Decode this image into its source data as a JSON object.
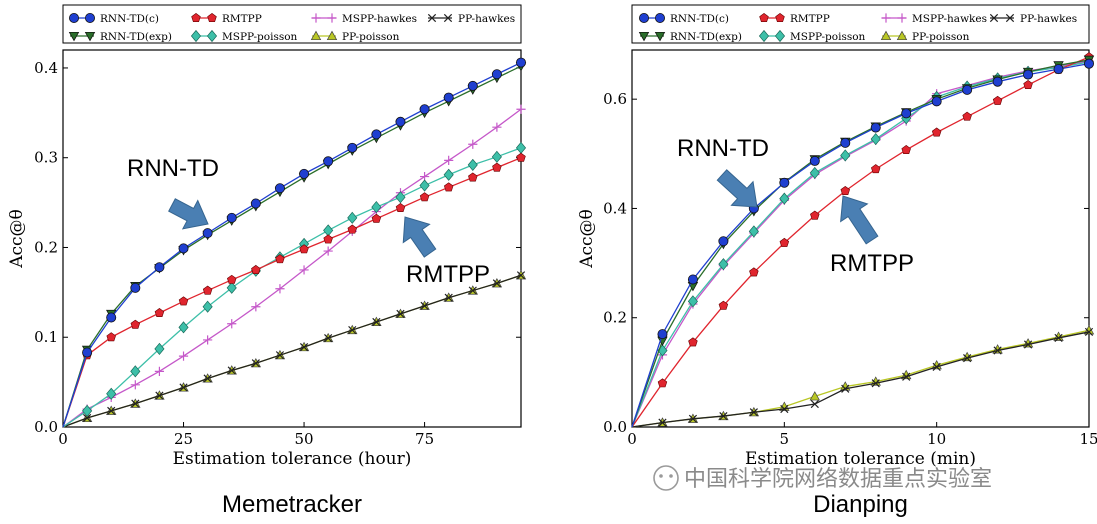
{
  "legend_entries": [
    "RNN-TD(c)",
    "RMTPP",
    "MSPP-hawkes",
    "PP-hawkes",
    "RNN-TD(exp)",
    "MSPP-poisson",
    "PP-poisson"
  ],
  "watermark": "中国科学院网络数据重点实验室",
  "chart_data": [
    {
      "type": "line",
      "title": "Memetracker",
      "xlabel": "Estimation tolerance (hour)",
      "ylabel": "Acc@θ",
      "xlim": [
        0,
        95
      ],
      "ylim": [
        0,
        0.42
      ],
      "xticks": [
        "0",
        "25",
        "50",
        "75"
      ],
      "yticks": [
        "0.0",
        "0.1",
        "0.2",
        "0.3",
        "0.4"
      ],
      "grid": false,
      "legend_position": "top",
      "x": [
        0,
        5,
        10,
        15,
        20,
        25,
        30,
        35,
        40,
        45,
        50,
        55,
        60,
        65,
        70,
        75,
        80,
        85,
        90,
        95
      ],
      "series": [
        {
          "name": "RNN-TD(c)",
          "color": "#1f3fd0",
          "marker": "circle",
          "values": [
            0,
            0.083,
            0.122,
            0.155,
            0.178,
            0.199,
            0.216,
            0.233,
            0.249,
            0.266,
            0.282,
            0.296,
            0.311,
            0.326,
            0.34,
            0.354,
            0.367,
            0.38,
            0.393,
            0.406
          ]
        },
        {
          "name": "RNN-TD(exp)",
          "color": "#2a6e2a",
          "marker": "triangle-down",
          "values": [
            0,
            0.086,
            0.126,
            0.157,
            0.177,
            0.197,
            0.214,
            0.23,
            0.246,
            0.262,
            0.278,
            0.293,
            0.308,
            0.322,
            0.336,
            0.35,
            0.363,
            0.376,
            0.389,
            0.402
          ]
        },
        {
          "name": "RMTPP",
          "color": "#e0252e",
          "marker": "pentagon",
          "values": [
            0,
            0.08,
            0.1,
            0.114,
            0.127,
            0.14,
            0.152,
            0.164,
            0.175,
            0.187,
            0.198,
            0.209,
            0.22,
            0.232,
            0.244,
            0.256,
            0.267,
            0.278,
            0.289,
            0.3
          ]
        },
        {
          "name": "MSPP-poisson",
          "color": "#3dbfa8",
          "marker": "diamond",
          "values": [
            0,
            0.018,
            0.037,
            0.062,
            0.087,
            0.111,
            0.134,
            0.155,
            0.174,
            0.189,
            0.204,
            0.219,
            0.233,
            0.245,
            0.256,
            0.269,
            0.281,
            0.292,
            0.301,
            0.311
          ]
        },
        {
          "name": "MSPP-hawkes",
          "color": "#c558c9",
          "marker": "plus",
          "values": [
            0,
            0.02,
            0.033,
            0.047,
            0.062,
            0.079,
            0.097,
            0.115,
            0.134,
            0.154,
            0.175,
            0.196,
            0.218,
            0.24,
            0.261,
            0.279,
            0.297,
            0.315,
            0.334,
            0.354
          ]
        },
        {
          "name": "PP-hawkes",
          "color": "#222222",
          "marker": "x",
          "values": [
            0,
            0.01,
            0.018,
            0.026,
            0.035,
            0.044,
            0.054,
            0.063,
            0.071,
            0.08,
            0.089,
            0.099,
            0.108,
            0.117,
            0.126,
            0.135,
            0.144,
            0.152,
            0.16,
            0.169
          ]
        },
        {
          "name": "PP-poisson",
          "color": "#b9c724",
          "marker": "triangle-up",
          "values": [
            0,
            0.01,
            0.018,
            0.026,
            0.035,
            0.044,
            0.054,
            0.063,
            0.071,
            0.08,
            0.089,
            0.099,
            0.108,
            0.117,
            0.126,
            0.135,
            0.144,
            0.152,
            0.16,
            0.169
          ]
        }
      ],
      "annotations": [
        {
          "text": "RNN-TD",
          "target_series": "RNN-TD(c)",
          "x": 30,
          "y": 0.216
        },
        {
          "text": "RMTPP",
          "target_series": "RMTPP",
          "x": 70,
          "y": 0.244
        }
      ]
    },
    {
      "type": "line",
      "title": "Dianping",
      "xlabel": "Estimation tolerance (min)",
      "ylabel": "Acc@θ",
      "xlim": [
        0,
        15
      ],
      "ylim": [
        0,
        0.69
      ],
      "xticks": [
        "0",
        "5",
        "10",
        "15"
      ],
      "yticks": [
        "0.0",
        "0.2",
        "0.4",
        "0.6"
      ],
      "grid": false,
      "legend_position": "top",
      "x": [
        0,
        1,
        2,
        3,
        4,
        5,
        6,
        7,
        8,
        9,
        10,
        11,
        12,
        13,
        14,
        15
      ],
      "series": [
        {
          "name": "RNN-TD(c)",
          "color": "#1f3fd0",
          "marker": "circle",
          "values": [
            0,
            0.17,
            0.27,
            0.34,
            0.4,
            0.447,
            0.487,
            0.52,
            0.548,
            0.574,
            0.596,
            0.617,
            0.632,
            0.645,
            0.655,
            0.665
          ]
        },
        {
          "name": "RNN-TD(exp)",
          "color": "#2a6e2a",
          "marker": "triangle-down",
          "values": [
            0,
            0.158,
            0.258,
            0.335,
            0.395,
            0.448,
            0.49,
            0.522,
            0.55,
            0.576,
            0.6,
            0.62,
            0.636,
            0.65,
            0.662,
            0.672
          ]
        },
        {
          "name": "RMTPP",
          "color": "#e0252e",
          "marker": "pentagon",
          "values": [
            0,
            0.08,
            0.155,
            0.222,
            0.283,
            0.337,
            0.387,
            0.432,
            0.472,
            0.507,
            0.539,
            0.568,
            0.597,
            0.626,
            0.654,
            0.677
          ]
        },
        {
          "name": "MSPP-poisson",
          "color": "#3dbfa8",
          "marker": "diamond",
          "values": [
            0,
            0.14,
            0.23,
            0.298,
            0.358,
            0.418,
            0.465,
            0.497,
            0.527,
            0.565,
            0.604,
            0.623,
            0.638,
            0.65,
            0.658,
            0.668
          ]
        },
        {
          "name": "MSPP-hawkes",
          "color": "#c558c9",
          "marker": "plus",
          "values": [
            0,
            0.132,
            0.225,
            0.295,
            0.355,
            0.415,
            0.462,
            0.495,
            0.525,
            0.56,
            0.61,
            0.625,
            0.64,
            0.652,
            0.66,
            0.67
          ]
        },
        {
          "name": "PP-hawkes",
          "color": "#222222",
          "marker": "x",
          "values": [
            0,
            0.008,
            0.015,
            0.02,
            0.027,
            0.033,
            0.042,
            0.07,
            0.08,
            0.092,
            0.11,
            0.126,
            0.14,
            0.151,
            0.163,
            0.174
          ]
        },
        {
          "name": "PP-poisson",
          "color": "#b9c724",
          "marker": "triangle-up",
          "values": [
            0,
            0.008,
            0.015,
            0.02,
            0.027,
            0.037,
            0.056,
            0.074,
            0.083,
            0.095,
            0.113,
            0.128,
            0.142,
            0.153,
            0.165,
            0.177
          ]
        }
      ],
      "annotations": [
        {
          "text": "RNN-TD",
          "target_series": "RNN-TD(c)",
          "x": 4,
          "y": 0.4
        },
        {
          "text": "RMTPP",
          "target_series": "RMTPP",
          "x": 7,
          "y": 0.432
        }
      ]
    }
  ]
}
